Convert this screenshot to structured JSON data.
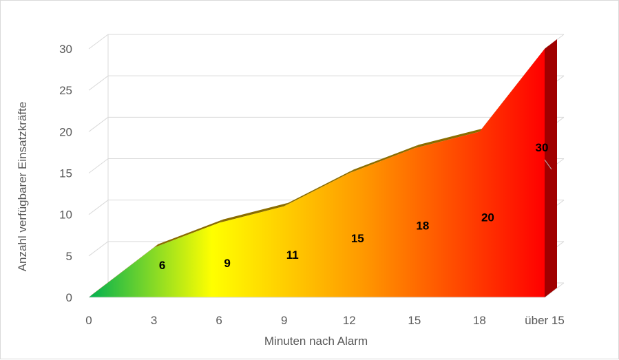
{
  "chart_data": {
    "type": "area",
    "title": "",
    "xlabel": "Minuten nach Alarm",
    "ylabel": "Anzahl  verfügbarer Einsatzkräfte",
    "categories": [
      "0",
      "3",
      "6",
      "9",
      "12",
      "15",
      "18",
      "über 15"
    ],
    "x_ticks": [
      "0",
      "3",
      "6",
      "9",
      "12",
      "15",
      "18",
      "über 15"
    ],
    "y_ticks": [
      "0",
      "5",
      "10",
      "15",
      "20",
      "25",
      "30"
    ],
    "ylim": [
      0,
      30
    ],
    "grid": true,
    "legend": "none",
    "series": [
      {
        "values": [
          0,
          6,
          9,
          11,
          15,
          18,
          20,
          30
        ],
        "data_labels": [
          "",
          "6",
          "9",
          "11",
          "15",
          "18",
          "20",
          "30"
        ]
      }
    ],
    "colors": {
      "gradient_start": "#00b050",
      "gradient_mid": "#ffff00",
      "gradient_orange": "#ff9900",
      "gradient_end": "#ff0000",
      "side_face": "#a00000",
      "top_face": "#8a6d00",
      "grid": "#d9d9d9",
      "text": "#595959"
    }
  }
}
